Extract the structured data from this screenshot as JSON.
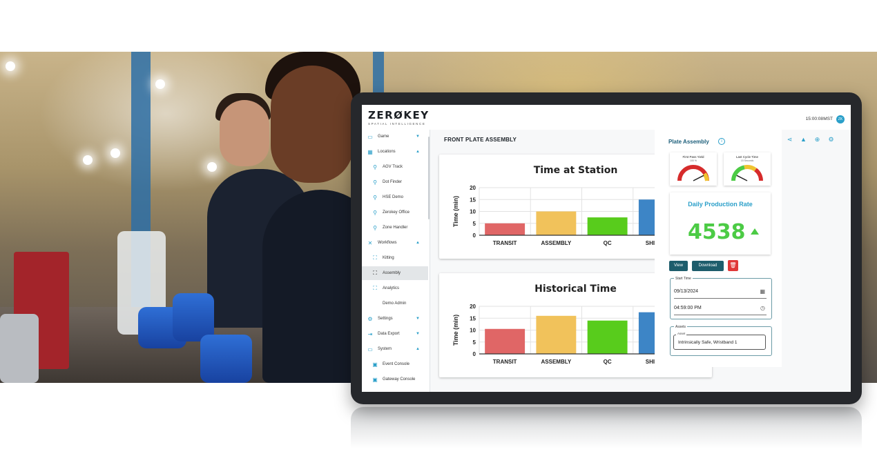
{
  "app": {
    "logo": "ZERØKEY",
    "logo_tagline": "SPATIAL INTELLIGENCE",
    "clock": "15:00:08",
    "timezone": "MST",
    "user_initials": "ZK"
  },
  "sidebar": {
    "items": [
      {
        "label": "Game",
        "icon": "gamepad-icon",
        "expanded": false
      },
      {
        "label": "Locations",
        "icon": "map-icon",
        "expanded": true
      },
      {
        "label": "AGV Track",
        "icon": "pin-icon"
      },
      {
        "label": "Dot Finder",
        "icon": "pin-icon"
      },
      {
        "label": "HSE Demo",
        "icon": "pin-icon"
      },
      {
        "label": "Zerokey Office",
        "icon": "pin-icon"
      },
      {
        "label": "Zone Handler",
        "icon": "pin-icon"
      },
      {
        "label": "Workflows",
        "icon": "tools-icon",
        "expanded": true
      },
      {
        "label": "Kitting",
        "icon": "focus-icon"
      },
      {
        "label": "Assembly",
        "icon": "focus-icon",
        "active": true
      },
      {
        "label": "Analytics",
        "icon": "focus-icon"
      },
      {
        "label": "Demo Admin"
      },
      {
        "label": "Settings",
        "icon": "gear-icon",
        "expanded": false
      },
      {
        "label": "Data Export",
        "icon": "export-icon",
        "expanded": false
      },
      {
        "label": "System",
        "icon": "monitor-icon",
        "expanded": true
      },
      {
        "label": "Event Console",
        "icon": "console-icon"
      },
      {
        "label": "Gateway Console",
        "icon": "console-icon"
      }
    ]
  },
  "page": {
    "title": "FRONT PLATE ASSEMBLY",
    "toolbar_icons": [
      "scan-icon",
      "grid-icon",
      "tools-icon",
      "eye-icon",
      "search-icon",
      "list-icon",
      "share-icon",
      "warning-icon",
      "add-icon",
      "gear-icon"
    ]
  },
  "chart_data": [
    {
      "type": "bar",
      "title": "Time at Station",
      "categories": [
        "TRANSIT",
        "ASSEMBLY",
        "QC",
        "SHIPPING"
      ],
      "values": [
        5,
        10,
        7.5,
        15
      ],
      "colors": [
        "#e06666",
        "#f1c25b",
        "#58cc1c",
        "#3d85c6"
      ],
      "ylabel": "Time (min)",
      "xlabel": "",
      "ylim": [
        0,
        20
      ],
      "yticks": [
        0,
        5,
        10,
        15,
        20
      ],
      "grid": true
    },
    {
      "type": "bar",
      "title": "Historical Time",
      "categories": [
        "TRANSIT",
        "ASSEMBLY",
        "QC",
        "SHIPPING"
      ],
      "values": [
        10.5,
        16,
        14,
        17.5
      ],
      "colors": [
        "#e06666",
        "#f1c25b",
        "#58cc1c",
        "#3d85c6"
      ],
      "ylabel": "Time (min)",
      "xlabel": "",
      "ylim": [
        0,
        20
      ],
      "yticks": [
        0,
        5,
        10,
        15,
        20
      ],
      "grid": true
    }
  ],
  "panel": {
    "title": "Plate Assembly",
    "gauges": [
      {
        "title": "First Pass Yield",
        "subtitle": "100 %",
        "level": 0.85
      },
      {
        "title": "Last Cycle Time",
        "subtitle": "15 Seconds",
        "level": 0.15
      }
    ],
    "kpi": {
      "label": "Daily Production Rate",
      "value": "4538",
      "trend": "up"
    },
    "buttons": {
      "view": "View",
      "download": "Download"
    },
    "start_time": {
      "label": "Start Time",
      "date": "09/13/2024",
      "time": "04:59:00 PM"
    },
    "assets": {
      "group_label": "Assets",
      "field_label": "Asset",
      "value": "Intrinsically Safe, Wristband 1"
    }
  },
  "colors": {
    "accent": "#2a9fc9",
    "dark_button": "#1e5d6c",
    "danger": "#e03838",
    "kpi_green": "#4ccb45"
  }
}
